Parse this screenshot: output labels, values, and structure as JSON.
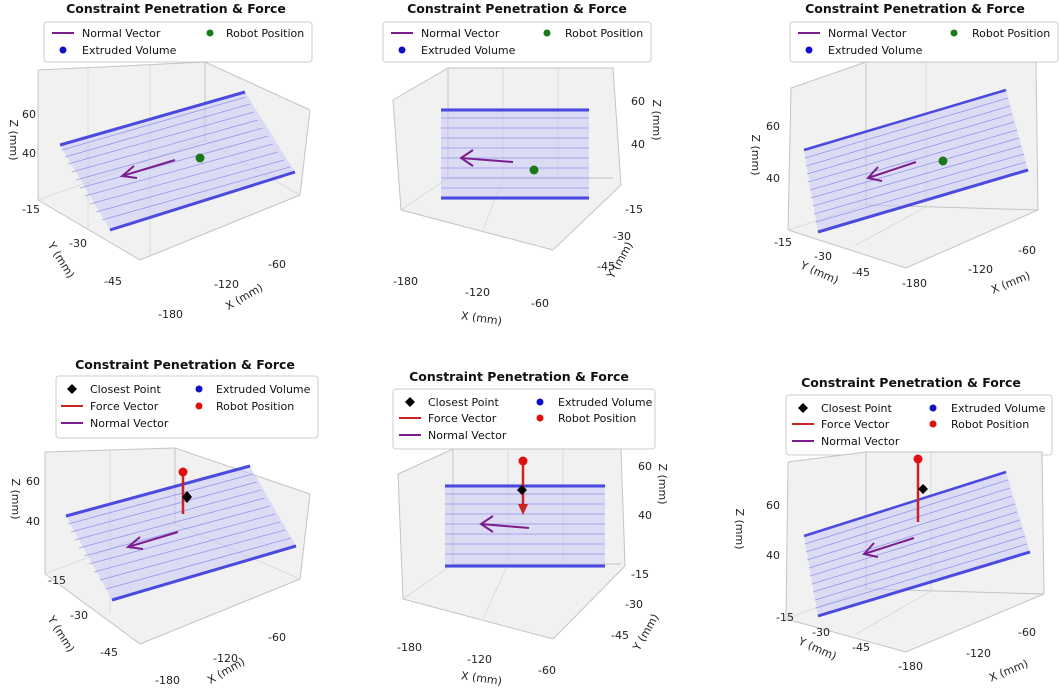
{
  "chart_data": [
    {
      "type": "scatter3d",
      "title": "Constraint Penetration & Force",
      "legend": [
        {
          "label": "Normal Vector",
          "marker": "line",
          "color": "#7b1e8c"
        },
        {
          "label": "Robot Position",
          "marker": "dot",
          "color": "#1a7a1a"
        },
        {
          "label": "Extruded Volume",
          "marker": "dot",
          "color": "#1010c8"
        }
      ],
      "xlabel": "X (mm)",
      "ylabel": "Y (mm)",
      "zlabel": "Z (mm)",
      "xticks": [
        "-180",
        "-120",
        "-60"
      ],
      "yticks": [
        "-15",
        "-30",
        "-45"
      ],
      "zticks": [
        "60",
        "40"
      ],
      "view": "oblique-left"
    },
    {
      "type": "scatter3d",
      "title": "Constraint Penetration & Force",
      "legend": [
        {
          "label": "Normal Vector",
          "marker": "line",
          "color": "#7b1e8c"
        },
        {
          "label": "Robot Position",
          "marker": "dot",
          "color": "#1a7a1a"
        },
        {
          "label": "Extruded Volume",
          "marker": "dot",
          "color": "#1010c8"
        }
      ],
      "xlabel": "X (mm)",
      "ylabel": "Y (mm)",
      "zlabel": "Z (mm)",
      "xticks": [
        "-180",
        "-120",
        "-60"
      ],
      "yticks": [
        "-15",
        "-30",
        "-45"
      ],
      "zticks": [
        "60",
        "40"
      ],
      "view": "front"
    },
    {
      "type": "scatter3d",
      "title": "Constraint Penetration & Force",
      "legend": [
        {
          "label": "Normal Vector",
          "marker": "line",
          "color": "#7b1e8c"
        },
        {
          "label": "Robot Position",
          "marker": "dot",
          "color": "#1a7a1a"
        },
        {
          "label": "Extruded Volume",
          "marker": "dot",
          "color": "#1010c8"
        }
      ],
      "xlabel": "X (mm)",
      "ylabel": "Y (mm)",
      "zlabel": "Z (mm)",
      "xticks": [
        "-180",
        "-120",
        "-60"
      ],
      "yticks": [
        "-15",
        "-30",
        "-45"
      ],
      "zticks": [
        "60",
        "40"
      ],
      "view": "side"
    },
    {
      "type": "scatter3d",
      "title": "Constraint Penetration & Force",
      "legend": [
        {
          "label": "Closest Point",
          "marker": "diamond",
          "color": "#000000"
        },
        {
          "label": "Extruded Volume",
          "marker": "dot",
          "color": "#1010c8"
        },
        {
          "label": "Force Vector",
          "marker": "line",
          "color": "#cc2222"
        },
        {
          "label": "Robot Position",
          "marker": "dot",
          "color": "#e01010"
        },
        {
          "label": "Normal Vector",
          "marker": "line",
          "color": "#7b1e8c"
        }
      ],
      "xlabel": "X (mm)",
      "ylabel": "Y (mm)",
      "zlabel": "Z (mm)",
      "xticks": [
        "-180",
        "-120",
        "-60"
      ],
      "yticks": [
        "-15",
        "-30",
        "-45"
      ],
      "zticks": [
        "60",
        "40"
      ],
      "view": "oblique-left"
    },
    {
      "type": "scatter3d",
      "title": "Constraint Penetration & Force",
      "legend": [
        {
          "label": "Closest Point",
          "marker": "diamond",
          "color": "#000000"
        },
        {
          "label": "Extruded Volume",
          "marker": "dot",
          "color": "#1010c8"
        },
        {
          "label": "Force Vector",
          "marker": "line",
          "color": "#cc2222"
        },
        {
          "label": "Robot Position",
          "marker": "dot",
          "color": "#e01010"
        },
        {
          "label": "Normal Vector",
          "marker": "line",
          "color": "#7b1e8c"
        }
      ],
      "xlabel": "X (mm)",
      "ylabel": "Y (mm)",
      "zlabel": "Z (mm)",
      "xticks": [
        "-180",
        "-120",
        "-60"
      ],
      "yticks": [
        "-15",
        "-30",
        "-45"
      ],
      "zticks": [
        "60",
        "40"
      ],
      "view": "front"
    },
    {
      "type": "scatter3d",
      "title": "Constraint Penetration & Force",
      "legend": [
        {
          "label": "Closest Point",
          "marker": "diamond",
          "color": "#000000"
        },
        {
          "label": "Extruded Volume",
          "marker": "dot",
          "color": "#1010c8"
        },
        {
          "label": "Force Vector",
          "marker": "line",
          "color": "#cc2222"
        },
        {
          "label": "Robot Position",
          "marker": "dot",
          "color": "#e01010"
        },
        {
          "label": "Normal Vector",
          "marker": "line",
          "color": "#7b1e8c"
        }
      ],
      "xlabel": "X (mm)",
      "ylabel": "Y (mm)",
      "zlabel": "Z (mm)",
      "xticks": [
        "-180",
        "-120",
        "-60"
      ],
      "yticks": [
        "-15",
        "-30",
        "-45"
      ],
      "zticks": [
        "60",
        "40"
      ],
      "view": "side"
    }
  ]
}
